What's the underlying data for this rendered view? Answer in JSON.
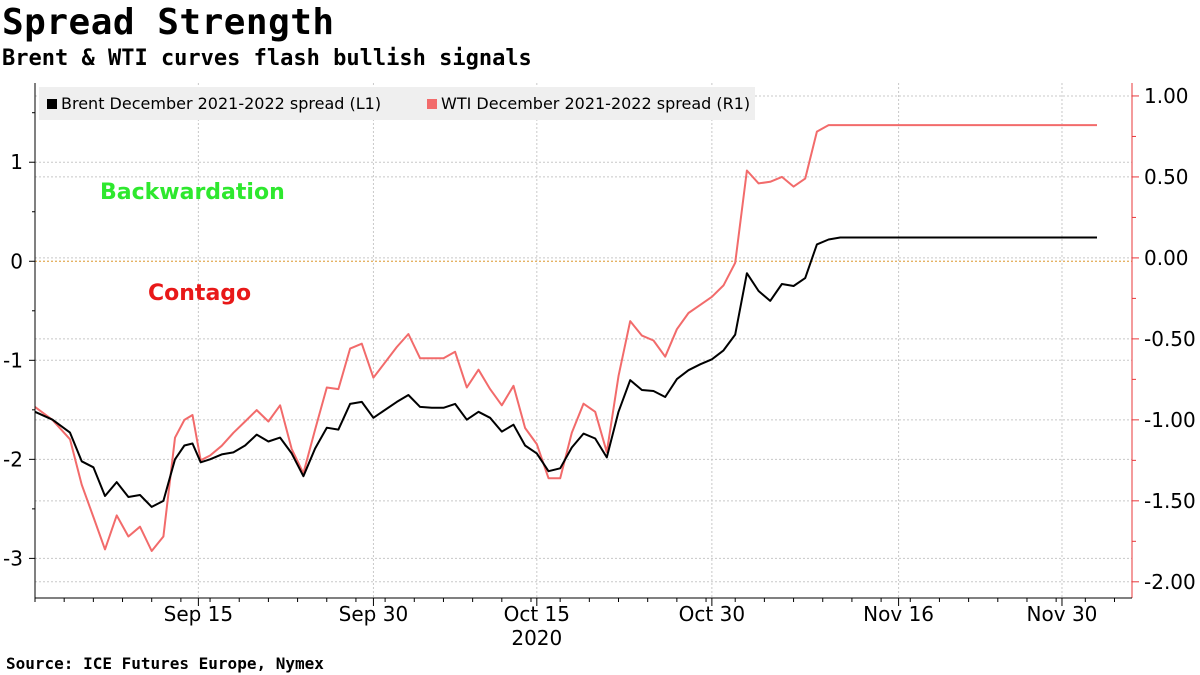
{
  "header": {
    "title": "Spread Strength",
    "subtitle": "Brent & WTI curves flash bullish signals"
  },
  "footer": {
    "source": "Source: ICE Futures Europe, Nymex"
  },
  "chart_data": {
    "type": "line",
    "title": "Spread Strength",
    "subtitle": "Brent & WTI curves flash bullish signals",
    "x_tick_labels": [
      "Sep 15",
      "Sep 30",
      "Oct 15",
      "Oct 30",
      "Nov 16",
      "Nov 30"
    ],
    "x_year_label": "2020",
    "left_axis": {
      "ylim": [
        -3.4,
        1.8
      ],
      "ticks": [
        1,
        0,
        -1,
        -2,
        -3
      ],
      "tick_labels": [
        "1",
        "0",
        "-1",
        "-2",
        "-3"
      ]
    },
    "right_axis": {
      "ylim": [
        -2.1,
        1.08
      ],
      "ticks": [
        1.0,
        0.5,
        0.0,
        -0.5,
        -1.0,
        -1.5,
        -2.0
      ],
      "tick_labels": [
        "1.00",
        "0.50",
        "0.00",
        "-0.50",
        "-1.00",
        "-1.50",
        "-2.00"
      ],
      "color": "#e8373a"
    },
    "x_range": [
      0,
      94
    ],
    "x_tick_positions": [
      14,
      29,
      43,
      58,
      74,
      88
    ],
    "zero_line": {
      "value": 0,
      "color": "#e8a33a"
    },
    "legend": {
      "placement": "top-left"
    },
    "grid": true,
    "annotations": [
      {
        "text": "Backwardation",
        "color": "#2ee82e"
      },
      {
        "text": "Contago",
        "color": "#e81818"
      }
    ],
    "series": [
      {
        "name": "Brent December 2021-2022 spread (L1)",
        "axis": "left",
        "color": "#000000",
        "x": [
          0,
          1.5,
          3,
          4,
          5,
          6,
          7,
          8,
          9,
          10,
          11,
          12,
          12.8,
          13.5,
          14.2,
          15,
          16,
          17,
          18,
          19,
          20,
          21,
          22,
          23,
          24,
          25,
          26,
          27,
          28,
          29,
          31,
          32,
          33,
          34,
          35,
          36,
          37,
          38,
          39,
          40,
          41,
          42,
          43,
          44,
          45,
          46,
          47,
          48,
          49,
          50,
          51,
          52,
          53,
          54,
          55,
          56,
          57,
          58,
          59,
          60,
          61,
          62,
          63,
          64,
          65,
          66,
          67,
          68,
          69,
          70,
          71,
          72,
          73,
          74,
          75,
          76,
          77,
          78,
          79,
          80,
          81,
          82,
          83,
          84,
          85,
          86,
          87,
          88,
          89,
          90,
          91,
          92
        ],
        "values": [
          -1.52,
          -1.6,
          -1.73,
          -2.02,
          -2.08,
          -2.37,
          -2.23,
          -2.38,
          -2.36,
          -2.48,
          -2.42,
          -2.0,
          -1.86,
          -1.84,
          -2.03,
          -2.0,
          -1.95,
          -1.93,
          -1.86,
          -1.75,
          -1.82,
          -1.78,
          -1.94,
          -2.17,
          -1.89,
          -1.68,
          -1.7,
          -1.44,
          -1.42,
          -1.58,
          -1.42,
          -1.35,
          -1.47,
          -1.48,
          -1.48,
          -1.44,
          -1.6,
          -1.52,
          -1.58,
          -1.72,
          -1.65,
          -1.86,
          -1.94,
          -2.12,
          -2.09,
          -1.88,
          -1.74,
          -1.79,
          -1.98,
          -1.52,
          -1.2,
          -1.3,
          -1.31,
          -1.37,
          -1.19,
          -1.1,
          -1.04,
          -0.99,
          -0.9,
          -0.74,
          -0.12,
          -0.3,
          -0.4,
          -0.23,
          -0.25,
          -0.17,
          0.17,
          0.22,
          0.24,
          0.24,
          0.24,
          0.24,
          0.24,
          0.24,
          0.24,
          0.24,
          0.24,
          0.24,
          0.24,
          0.24,
          0.24,
          0.24,
          0.24,
          0.24,
          0.24,
          0.24,
          0.24,
          0.24,
          0.24,
          0.24,
          0.24,
          0.24
        ]
      },
      {
        "name": "WTI December 2021-2022 spread (R1)",
        "axis": "right",
        "color": "#f26b6b",
        "x": [
          0,
          1.5,
          3,
          4,
          5,
          6,
          7,
          8,
          9,
          10,
          11,
          12,
          12.8,
          13.5,
          14.2,
          15,
          16,
          17,
          18,
          19,
          20,
          21,
          22,
          23,
          24,
          25,
          26,
          27,
          28,
          29,
          31,
          32,
          33,
          34,
          35,
          36,
          37,
          38,
          39,
          40,
          41,
          42,
          43,
          44,
          45,
          46,
          47,
          48,
          49,
          50,
          51,
          52,
          53,
          54,
          55,
          56,
          57,
          58,
          59,
          60,
          61,
          62,
          63,
          64,
          65,
          66,
          67,
          68,
          69,
          70,
          71,
          72,
          73,
          74,
          75,
          76,
          77,
          78,
          79,
          80,
          81,
          82,
          83,
          84,
          85,
          86,
          87,
          88,
          89,
          90,
          91,
          92
        ],
        "values": [
          -0.92,
          -1.0,
          -1.12,
          -1.4,
          -1.6,
          -1.8,
          -1.59,
          -1.72,
          -1.66,
          -1.81,
          -1.72,
          -1.11,
          -1.0,
          -0.97,
          -1.25,
          -1.22,
          -1.16,
          -1.08,
          -1.01,
          -0.94,
          -1.01,
          -0.91,
          -1.18,
          -1.33,
          -1.06,
          -0.8,
          -0.81,
          -0.56,
          -0.53,
          -0.74,
          -0.55,
          -0.47,
          -0.62,
          -0.62,
          -0.62,
          -0.58,
          -0.8,
          -0.69,
          -0.81,
          -0.91,
          -0.79,
          -1.05,
          -1.15,
          -1.36,
          -1.36,
          -1.08,
          -0.9,
          -0.95,
          -1.2,
          -0.73,
          -0.39,
          -0.48,
          -0.51,
          -0.61,
          -0.44,
          -0.34,
          -0.29,
          -0.24,
          -0.17,
          -0.03,
          0.54,
          0.46,
          0.47,
          0.5,
          0.44,
          0.49,
          0.78,
          0.82,
          0.82,
          0.82,
          0.82,
          0.82,
          0.82,
          0.82,
          0.82,
          0.82,
          0.82,
          0.82,
          0.82,
          0.82,
          0.82,
          0.82,
          0.82,
          0.82,
          0.82,
          0.82,
          0.82,
          0.82,
          0.82,
          0.82,
          0.82,
          0.82
        ]
      }
    ]
  }
}
